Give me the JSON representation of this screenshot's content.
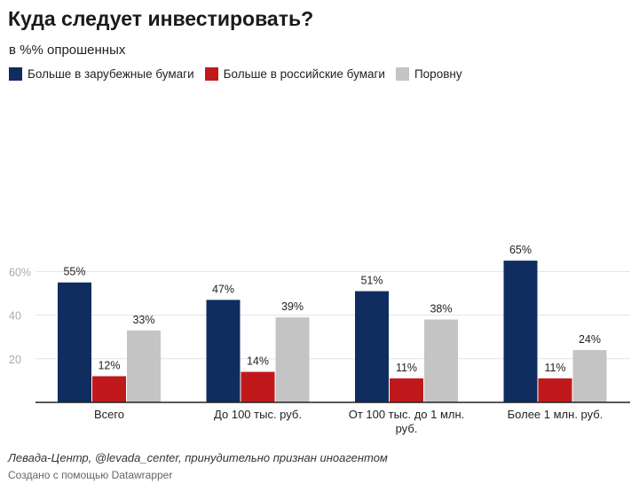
{
  "title": "Куда следует инвестировать?",
  "subtitle": "в %% опрошенных",
  "source": "Левада-Центр, @levada_center, принудительно признан иноагентом",
  "credit": "Создано с помощью Datawrapper",
  "colors": {
    "foreign": "#0f2d5f",
    "russian": "#c1191b",
    "equal": "#c4c4c4",
    "axis": "#222222",
    "grid": "#e3e3e3"
  },
  "chart_data": {
    "type": "bar",
    "title": "Куда следует инвестировать?",
    "ylabel": "в %% опрошенных",
    "ylim": [
      0,
      65
    ],
    "yticks": [
      0,
      20,
      40,
      60
    ],
    "ytick_labels": [
      "",
      "20",
      "40",
      "60%"
    ],
    "grid": true,
    "legend_position": "top-left",
    "categories": [
      [
        "Всего"
      ],
      [
        "До 100 тыс. руб."
      ],
      [
        "От 100 тыс. до 1 млн.",
        "руб."
      ],
      [
        "Более 1 млн. руб."
      ]
    ],
    "series": [
      {
        "name": "Больше в зарубежные бумаги",
        "color": "#0f2d5f",
        "values": [
          55,
          47,
          51,
          65
        ],
        "labels": [
          "55%",
          "47%",
          "51%",
          "65%"
        ]
      },
      {
        "name": "Больше в российские бумаги",
        "color": "#c1191b",
        "values": [
          12,
          14,
          11,
          11
        ],
        "labels": [
          "12%",
          "14%",
          "11%",
          "11%"
        ]
      },
      {
        "name": "Поровну",
        "color": "#c4c4c4",
        "values": [
          33,
          39,
          38,
          24
        ],
        "labels": [
          "33%",
          "39%",
          "38%",
          "24%"
        ]
      }
    ]
  }
}
